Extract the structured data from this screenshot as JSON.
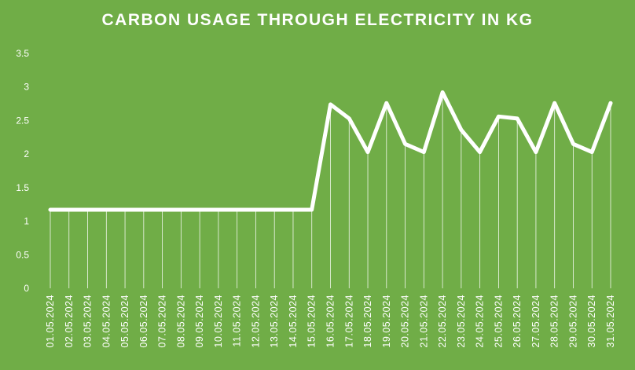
{
  "chart_data": {
    "type": "line",
    "title": "CARBON USAGE THROUGH ELECTRICITY IN KG",
    "xlabel": "",
    "ylabel": "",
    "ylim": [
      0,
      3.5
    ],
    "yticks": [
      "0",
      "0.5",
      "1",
      "1.5",
      "2",
      "2.5",
      "3",
      "3.5"
    ],
    "grid": false,
    "legend": "none",
    "drop_lines": true,
    "categories": [
      "01.05.2024",
      "02.05.2024",
      "03.05.2024",
      "04.05.2024",
      "05.05.2024",
      "06.05.2024",
      "07.05.2024",
      "08.05.2024",
      "09.05.2024",
      "10.05.2024",
      "11.05.2024",
      "12.05.2024",
      "13.05.2024",
      "14.05.2024",
      "15.05.2024",
      "16.05.2024",
      "17.05.2024",
      "18.05.2024",
      "19.05.2024",
      "20.05.2024",
      "21.05.2024",
      "22.05.2024",
      "23.05.2024",
      "24.05.2024",
      "25.05.2024",
      "26.05.2024",
      "27.05.2024",
      "28.05.2024",
      "29.05.2024",
      "30.05.2024",
      "31.05.2024"
    ],
    "series": [
      {
        "values": [
          1.17,
          1.17,
          1.17,
          1.17,
          1.17,
          1.17,
          1.17,
          1.17,
          1.17,
          1.17,
          1.17,
          1.17,
          1.17,
          1.17,
          1.17,
          2.74,
          2.53,
          2.03,
          2.76,
          2.15,
          2.03,
          2.92,
          2.36,
          2.03,
          2.56,
          2.53,
          2.03,
          2.76,
          2.15,
          2.03,
          2.76
        ]
      }
    ],
    "colors": {
      "background": "#70AD47",
      "line": "#FFFFFF",
      "text": "#FFFFFF"
    }
  }
}
